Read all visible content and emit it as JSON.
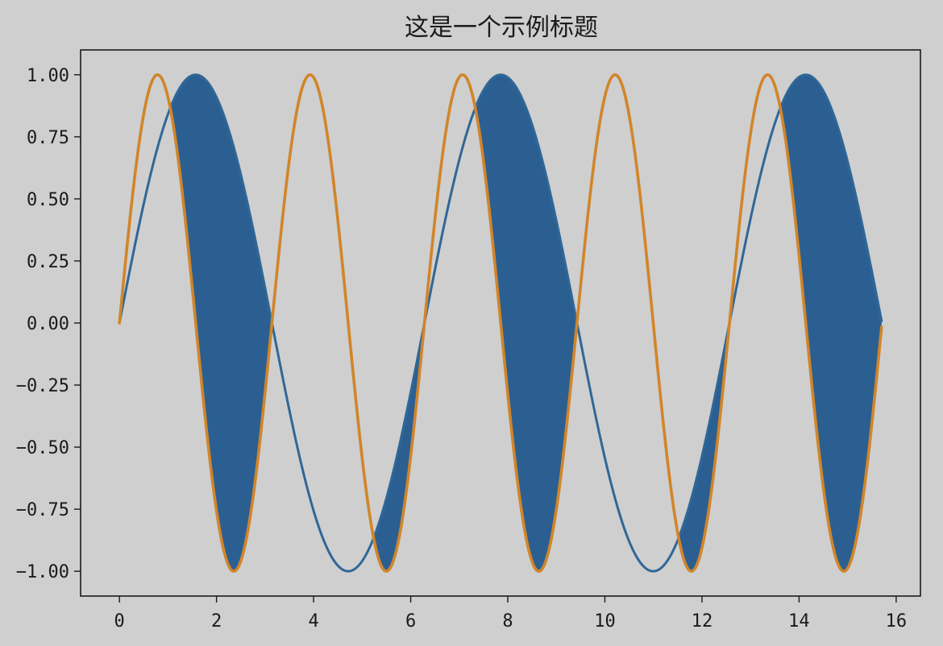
{
  "chart_data": {
    "type": "line",
    "title": "这是一个示例标题",
    "xlabel": "",
    "ylabel": "",
    "xlim": [
      -0.8,
      16.5
    ],
    "ylim": [
      -1.1,
      1.1
    ],
    "x_range": [
      0,
      15.7
    ],
    "x_ticks": [
      0,
      2,
      4,
      6,
      8,
      10,
      12,
      14,
      16
    ],
    "x_tick_labels": [
      "0",
      "2",
      "4",
      "6",
      "8",
      "10",
      "12",
      "14",
      "16"
    ],
    "y_ticks": [
      1.0,
      0.75,
      0.5,
      0.25,
      0.0,
      -0.25,
      -0.5,
      -0.75,
      -1.0
    ],
    "y_tick_labels": [
      "1.00",
      "0.75",
      "0.50",
      "0.25",
      "0.00",
      "−0.25",
      "−0.50",
      "−0.75",
      "−1.00"
    ],
    "grid": false,
    "series": [
      {
        "function": "sin(x)",
        "color": "#2f6797"
      },
      {
        "function": "sin(2x)",
        "color": "#d1852a"
      }
    ],
    "fill_between": {
      "where": "sin(x) > sin(2x)",
      "color": "#2c5f91"
    }
  }
}
